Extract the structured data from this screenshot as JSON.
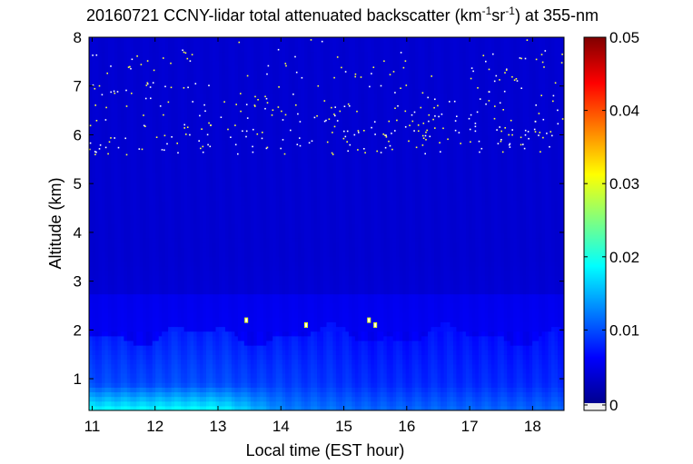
{
  "chart_data": {
    "type": "heatmap",
    "title": {
      "prefix": "20160721 CCNY-lidar total attenuated backscatter (km",
      "sup1": "-1",
      "mid": "sr",
      "sup2": "-1",
      "suffix": ") at 355-nm"
    },
    "xlabel": "Local time (EST hour)",
    "ylabel": "Altitude (km)",
    "xlim": [
      10.95,
      18.5
    ],
    "ylim": [
      0.35,
      8
    ],
    "x_ticks": [
      11,
      12,
      13,
      14,
      15,
      16,
      17,
      18
    ],
    "y_ticks": [
      1,
      2,
      3,
      4,
      5,
      6,
      7,
      8
    ],
    "colorbar": {
      "range": [
        0,
        0.05
      ],
      "ticks": [
        0,
        0.01,
        0.02,
        0.03,
        0.04,
        0.05
      ],
      "colormap": "jet",
      "below_min_color": "#f0f0f0"
    },
    "boundary_layer_top_km": 2.75,
    "aerosol_layer_top_km": 1.9,
    "cloud_features": [
      {
        "time": 13.45,
        "altitude": 2.2,
        "value": 0.03
      },
      {
        "time": 14.4,
        "altitude": 2.1,
        "value": 0.03
      },
      {
        "time": 15.4,
        "altitude": 2.2,
        "value": 0.03
      },
      {
        "time": 15.5,
        "altitude": 2.1,
        "value": 0.03
      }
    ],
    "background_value": 0.004,
    "surface_layer_value": 0.012
  }
}
